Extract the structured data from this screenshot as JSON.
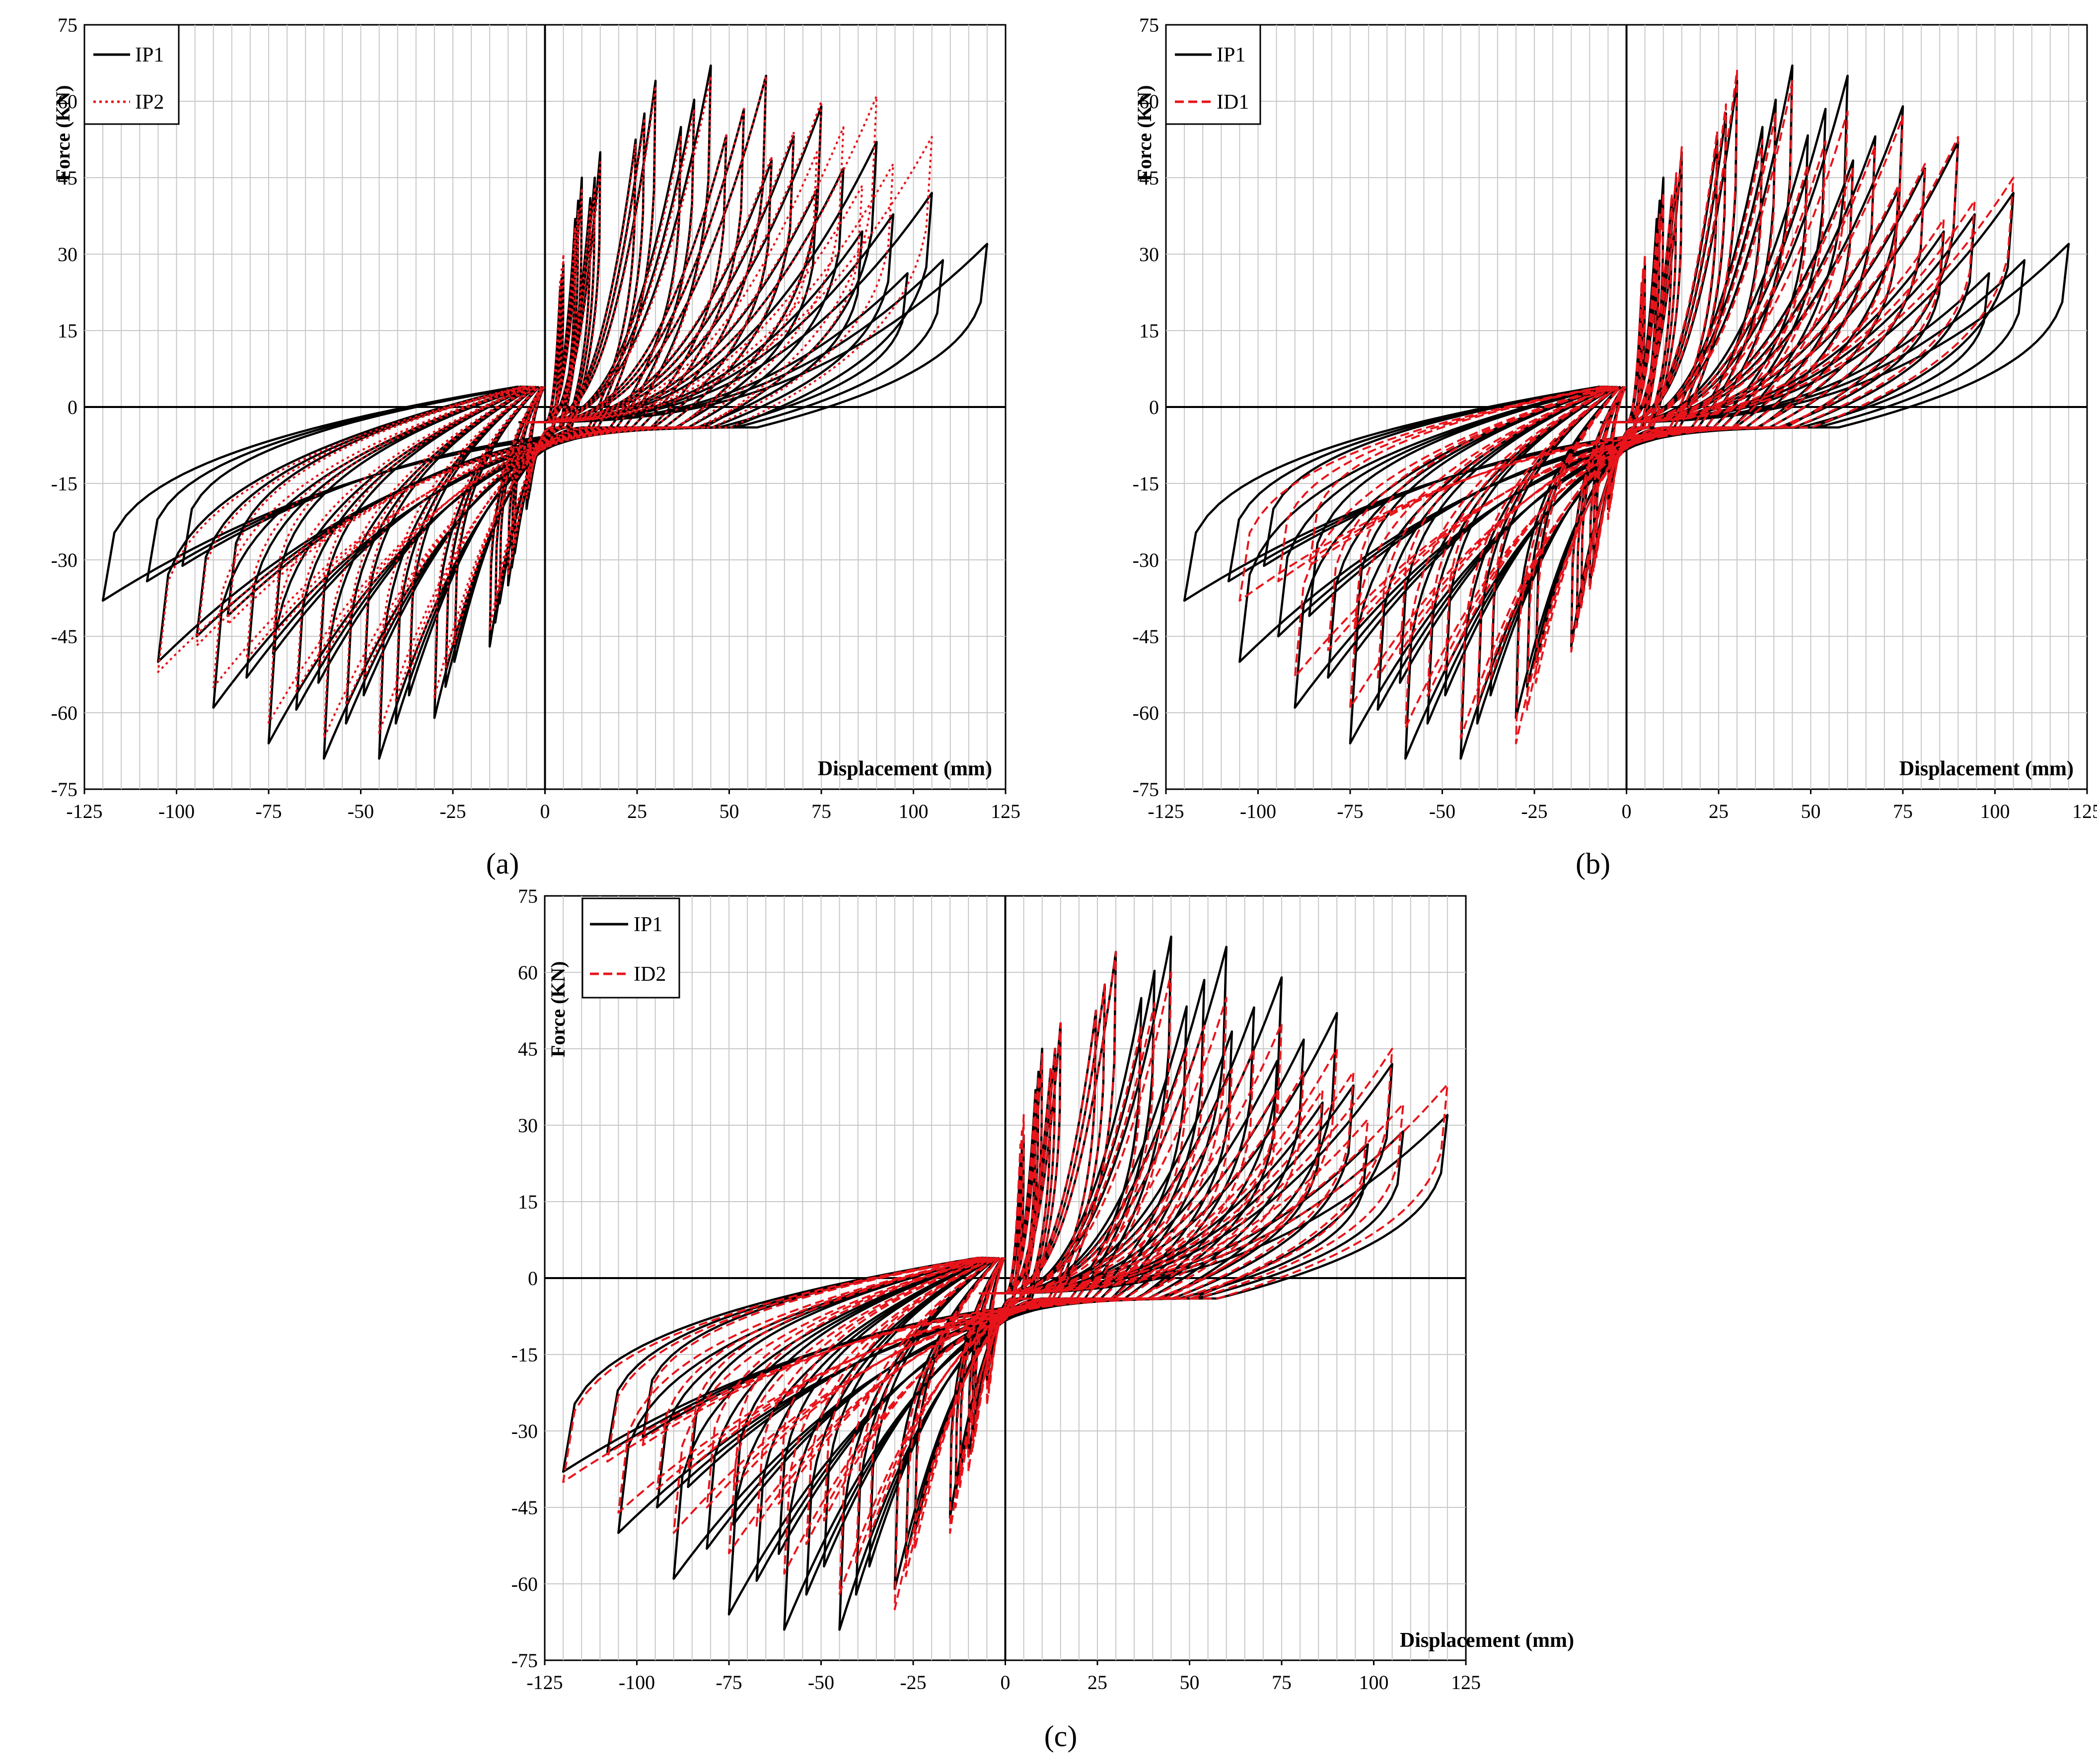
{
  "figure": {
    "colors": {
      "ip1": "#000000",
      "comparison": "#e8141b",
      "grid": "#c8c8c8",
      "axis": "#000000"
    }
  },
  "chart_data": [
    {
      "panel_label": "(a)",
      "type": "line",
      "xlabel": "Displacement (mm)",
      "ylabel": "Force (KN)",
      "xlim": [
        -125,
        125
      ],
      "ylim": [
        -75,
        75
      ],
      "xticks": [
        -125,
        -100,
        -75,
        -50,
        -25,
        0,
        25,
        50,
        75,
        100,
        125
      ],
      "yticks": [
        -75,
        -60,
        -45,
        -30,
        -15,
        0,
        15,
        30,
        45,
        60,
        75
      ],
      "grid": true,
      "legend_position": "top-left",
      "series": [
        {
          "name": "IP1",
          "style": "solid",
          "color": "#000000",
          "cycles": [
            {
              "d": 5,
              "fp": 28,
              "fn": -20
            },
            {
              "d": 10,
              "fp": 45,
              "fn": -35
            },
            {
              "d": 15,
              "fp": 50,
              "fn": -47
            },
            {
              "d": 30,
              "fp": 64,
              "fn": -61
            },
            {
              "d": 45,
              "fp": 67,
              "fn": -69
            },
            {
              "d": 60,
              "fp": 65,
              "fn": -69
            },
            {
              "d": 75,
              "fp": 59,
              "fn": -66
            },
            {
              "d": 90,
              "fp": 52,
              "fn": -59
            },
            {
              "d": 105,
              "fp": 42,
              "fn": -50
            },
            {
              "d": 120,
              "fp": 32,
              "fn": -38
            }
          ]
        },
        {
          "name": "IP2",
          "style": "dotted",
          "color": "#e8141b",
          "cycles": [
            {
              "d": 5,
              "fp": 30,
              "fn": -18
            },
            {
              "d": 10,
              "fp": 43,
              "fn": -33
            },
            {
              "d": 15,
              "fp": 48,
              "fn": -44
            },
            {
              "d": 30,
              "fp": 63,
              "fn": -57
            },
            {
              "d": 45,
              "fp": 65,
              "fn": -64
            },
            {
              "d": 60,
              "fp": 65,
              "fn": -65
            },
            {
              "d": 75,
              "fp": 60,
              "fn": -62
            },
            {
              "d": 90,
              "fp": 61,
              "fn": -55
            },
            {
              "d": 105,
              "fp": 53,
              "fn": -52
            }
          ]
        }
      ]
    },
    {
      "panel_label": "(b)",
      "type": "line",
      "xlabel": "Displacement (mm)",
      "ylabel": "Force (KN)",
      "xlim": [
        -125,
        125
      ],
      "ylim": [
        -75,
        75
      ],
      "xticks": [
        -125,
        -100,
        -75,
        -50,
        -25,
        0,
        25,
        50,
        75,
        100,
        125
      ],
      "yticks": [
        -75,
        -60,
        -45,
        -30,
        -15,
        0,
        15,
        30,
        45,
        60,
        75
      ],
      "grid": true,
      "legend_position": "top-left",
      "series": [
        {
          "name": "IP1",
          "style": "solid",
          "color": "#000000",
          "cycles": [
            {
              "d": 5,
              "fp": 28,
              "fn": -20
            },
            {
              "d": 10,
              "fp": 45,
              "fn": -35
            },
            {
              "d": 15,
              "fp": 50,
              "fn": -47
            },
            {
              "d": 30,
              "fp": 64,
              "fn": -61
            },
            {
              "d": 45,
              "fp": 67,
              "fn": -69
            },
            {
              "d": 60,
              "fp": 65,
              "fn": -69
            },
            {
              "d": 75,
              "fp": 59,
              "fn": -66
            },
            {
              "d": 90,
              "fp": 52,
              "fn": -59
            },
            {
              "d": 105,
              "fp": 42,
              "fn": -50
            },
            {
              "d": 120,
              "fp": 32,
              "fn": -38
            }
          ]
        },
        {
          "name": "ID1",
          "style": "dashed",
          "color": "#e8141b",
          "cycles": [
            {
              "d": 5,
              "fp": 30,
              "fn": -22
            },
            {
              "d": 10,
              "fp": 42,
              "fn": -36
            },
            {
              "d": 15,
              "fp": 51,
              "fn": -48
            },
            {
              "d": 30,
              "fp": 66,
              "fn": -66
            },
            {
              "d": 45,
              "fp": 64,
              "fn": -65
            },
            {
              "d": 60,
              "fp": 58,
              "fn": -63
            },
            {
              "d": 75,
              "fp": 57,
              "fn": -59
            },
            {
              "d": 90,
              "fp": 53,
              "fn": -53
            },
            {
              "d": 105,
              "fp": 45,
              "fn": -38
            }
          ]
        }
      ]
    },
    {
      "panel_label": "(c)",
      "type": "line",
      "xlabel": "Displacement (mm)",
      "ylabel": "Force (KN)",
      "xlim": [
        -125,
        125
      ],
      "ylim": [
        -75,
        75
      ],
      "xticks": [
        -125,
        -100,
        -75,
        -50,
        -25,
        0,
        25,
        50,
        75,
        100,
        125
      ],
      "yticks": [
        -75,
        -60,
        -45,
        -30,
        -15,
        0,
        15,
        30,
        45,
        60,
        75
      ],
      "grid": true,
      "legend_position": "top-left",
      "series": [
        {
          "name": "IP1",
          "style": "solid",
          "color": "#000000",
          "cycles": [
            {
              "d": 5,
              "fp": 28,
              "fn": -20
            },
            {
              "d": 10,
              "fp": 45,
              "fn": -35
            },
            {
              "d": 15,
              "fp": 50,
              "fn": -47
            },
            {
              "d": 30,
              "fp": 64,
              "fn": -61
            },
            {
              "d": 45,
              "fp": 67,
              "fn": -69
            },
            {
              "d": 60,
              "fp": 65,
              "fn": -69
            },
            {
              "d": 75,
              "fp": 59,
              "fn": -66
            },
            {
              "d": 90,
              "fp": 52,
              "fn": -59
            },
            {
              "d": 105,
              "fp": 42,
              "fn": -50
            },
            {
              "d": 120,
              "fp": 32,
              "fn": -38
            }
          ]
        },
        {
          "name": "ID2",
          "style": "dashed",
          "color": "#e8141b",
          "cycles": [
            {
              "d": 5,
              "fp": 32,
              "fn": -25
            },
            {
              "d": 10,
              "fp": 44,
              "fn": -38
            },
            {
              "d": 15,
              "fp": 50,
              "fn": -50
            },
            {
              "d": 30,
              "fp": 64,
              "fn": -65
            },
            {
              "d": 45,
              "fp": 60,
              "fn": -62
            },
            {
              "d": 60,
              "fp": 55,
              "fn": -58
            },
            {
              "d": 75,
              "fp": 50,
              "fn": -54
            },
            {
              "d": 90,
              "fp": 45,
              "fn": -50
            },
            {
              "d": 105,
              "fp": 45,
              "fn": -46
            },
            {
              "d": 120,
              "fp": 38,
              "fn": -40
            }
          ]
        }
      ]
    }
  ]
}
